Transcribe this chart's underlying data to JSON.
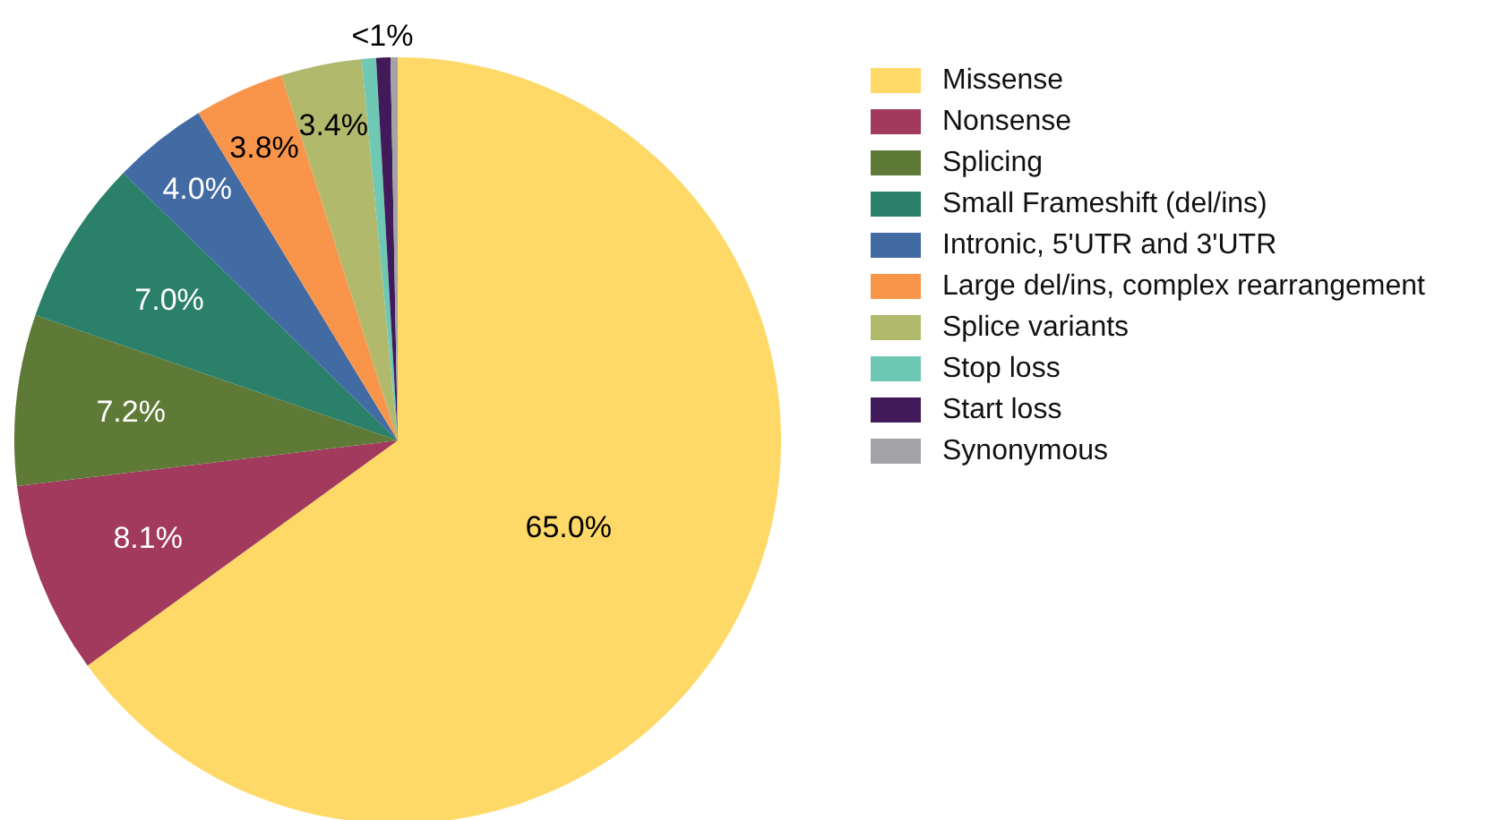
{
  "chart_data": {
    "type": "pie",
    "categories": [
      "Missense",
      "Nonsense",
      "Splicing",
      "Small Frameshift (del/ins)",
      "Intronic, 5'UTR and 3'UTR",
      "Large del/ins, complex rearrangement",
      "Splice variants",
      "Stop loss",
      "Start loss",
      "Synonymous"
    ],
    "values": [
      65.0,
      8.1,
      7.2,
      7.0,
      4.0,
      3.8,
      3.4,
      0.6,
      0.6,
      0.3
    ],
    "value_labels": [
      "65.0%",
      "8.1%",
      "7.2%",
      "7.0%",
      "4.0%",
      "3.8%",
      "3.4%",
      null,
      "<1%",
      null
    ],
    "colors": [
      "#fed967",
      "#a13a5d",
      "#5f7a37",
      "#2b806a",
      "#426aa3",
      "#f9954a",
      "#b1b96d",
      "#6ec8b4",
      "#411a5a",
      "#a3a3a7"
    ],
    "legend": "right"
  }
}
